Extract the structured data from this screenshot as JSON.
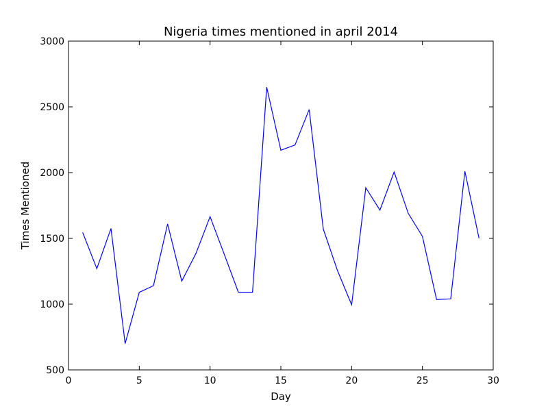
{
  "chart_data": {
    "type": "line",
    "title": "Nigeria times mentioned in april 2014",
    "xlabel": "Day",
    "ylabel": "Times Mentioned",
    "xlim": [
      0,
      30
    ],
    "ylim": [
      500,
      3000
    ],
    "xticks": [
      0,
      5,
      10,
      15,
      20,
      25,
      30
    ],
    "yticks": [
      500,
      1000,
      1500,
      2000,
      2500,
      3000
    ],
    "grid": false,
    "line_color": "#0000ff",
    "series": [
      {
        "x": [
          1,
          2,
          3,
          4,
          5,
          6,
          7,
          8,
          9,
          10,
          11,
          12,
          13,
          14,
          15,
          16,
          17,
          18,
          19,
          20,
          21,
          22,
          23,
          24,
          25,
          26,
          27,
          28,
          29
        ],
        "values": [
          1545,
          1270,
          1575,
          700,
          1090,
          1140,
          1610,
          1175,
          1385,
          1665,
          1380,
          1090,
          1090,
          2650,
          2170,
          2210,
          2480,
          1570,
          1255,
          995,
          1885,
          1715,
          2005,
          1690,
          1515,
          1035,
          1040,
          2010,
          1500
        ]
      }
    ]
  }
}
